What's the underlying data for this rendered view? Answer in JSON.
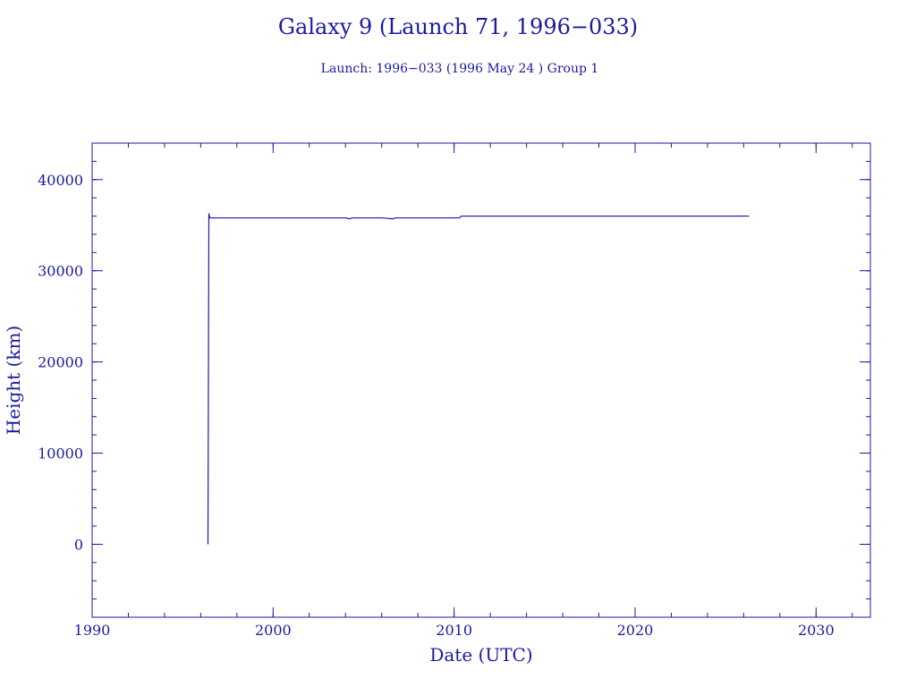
{
  "chart_data": {
    "type": "line",
    "title": "Galaxy 9 (Launch 71, 1996−033)",
    "subtitle": "Launch: 1996−033  (1996 May 24 )  Group 1",
    "xlabel": "Date (UTC)",
    "ylabel": "Height (km)",
    "xlim": [
      1990,
      2033
    ],
    "ylim": [
      -8000,
      44000
    ],
    "x_ticks": [
      1990,
      2000,
      2010,
      2020,
      2030
    ],
    "x_tick_labels": [
      "1990",
      "2000",
      "2010",
      "2020",
      "2030"
    ],
    "x_minor_step": 2,
    "y_ticks": [
      0,
      10000,
      20000,
      30000,
      40000
    ],
    "y_tick_labels": [
      "0",
      "10000",
      "20000",
      "30000",
      "40000"
    ],
    "y_minor_step": 2000,
    "grid": false,
    "line_color": "#1a1aa0",
    "series": [
      {
        "x": [
          1996.4,
          1996.45,
          1996.5,
          1996.6,
          1998.0,
          2000.0,
          2002.0,
          2004.0,
          2004.2,
          2004.4,
          2006.0,
          2006.6,
          2006.8,
          2008.0,
          2010.3,
          2010.4,
          2012.0,
          2016.0,
          2020.0,
          2024.0,
          2026.3
        ],
        "y": [
          0,
          36300,
          35800,
          35800,
          35800,
          35800,
          35800,
          35800,
          35700,
          35800,
          35800,
          35700,
          35800,
          35800,
          35800,
          36000,
          36000,
          36000,
          36000,
          36000,
          36000
        ]
      }
    ]
  }
}
